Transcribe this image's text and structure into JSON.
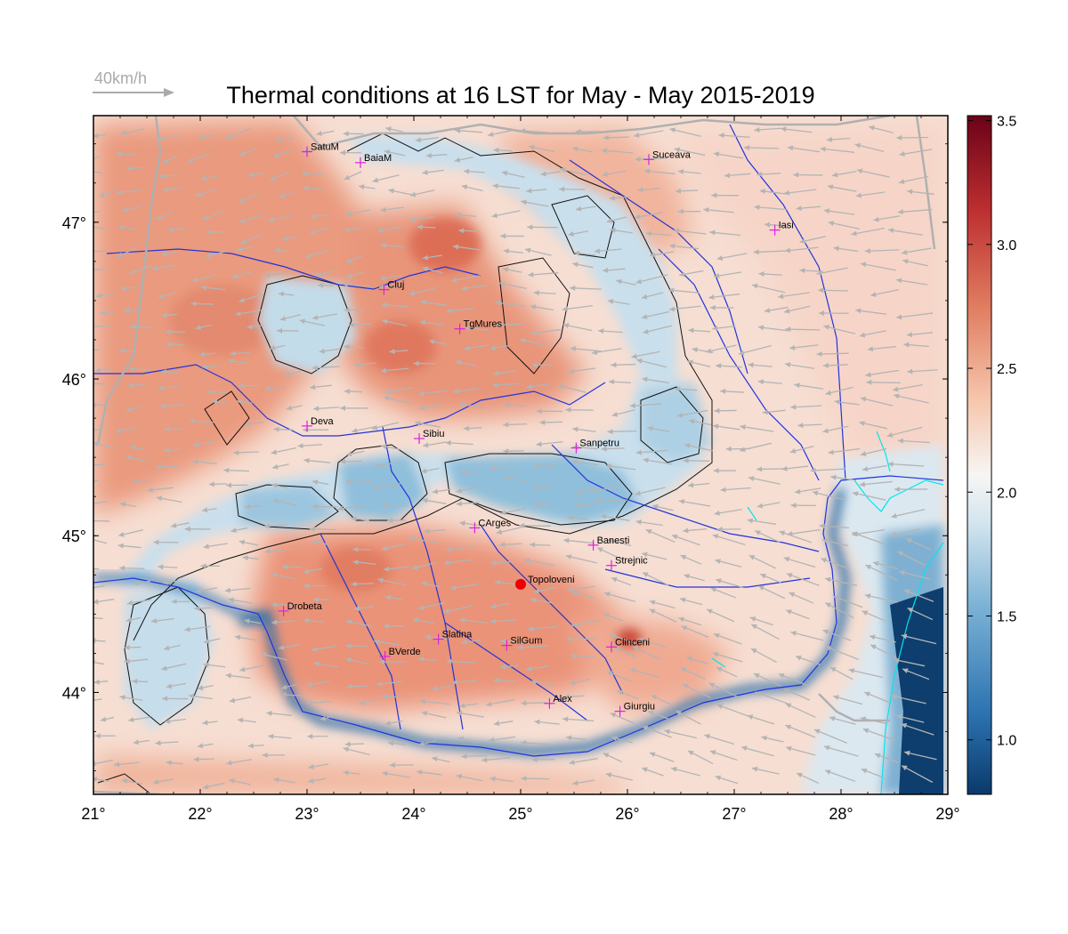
{
  "title": "Thermal conditions at 16 LST for May - May  2015-2019",
  "wind_legend": {
    "label": "40km/h",
    "color": "#aaaaaa"
  },
  "map": {
    "lon_range": [
      21,
      29
    ],
    "lat_range": [
      43.35,
      47.68
    ],
    "lon_ticks": [
      {
        "v": 21,
        "label": "21°"
      },
      {
        "v": 22,
        "label": "22°"
      },
      {
        "v": 23,
        "label": "23°"
      },
      {
        "v": 24,
        "label": "24°"
      },
      {
        "v": 25,
        "label": "25°"
      },
      {
        "v": 26,
        "label": "26°"
      },
      {
        "v": 27,
        "label": "27°"
      },
      {
        "v": 28,
        "label": "28°"
      },
      {
        "v": 29,
        "label": "29°"
      }
    ],
    "lat_ticks": [
      {
        "v": 44,
        "label": "44°"
      },
      {
        "v": 45,
        "label": "45°"
      },
      {
        "v": 46,
        "label": "46°"
      },
      {
        "v": 47,
        "label": "47°"
      }
    ],
    "colors": {
      "cold": "#0a3a6a",
      "cool": "#8ec3de",
      "neutral": "#f4f1f0",
      "warm": "#f0a582",
      "hot": "#d8604a",
      "river": "#2233dd",
      "coast": "#00e5ee",
      "border": "#b0b0b0",
      "city_marker": "#dd22dd",
      "highlight": "#ee0000"
    },
    "cities": [
      {
        "name": "SatuM",
        "lon": 23.0,
        "lat": 47.45
      },
      {
        "name": "BaiaM",
        "lon": 23.5,
        "lat": 47.38
      },
      {
        "name": "Suceava",
        "lon": 26.2,
        "lat": 47.4
      },
      {
        "name": "Iasi",
        "lon": 27.38,
        "lat": 46.95
      },
      {
        "name": "Cluj",
        "lon": 23.72,
        "lat": 46.57
      },
      {
        "name": "TgMures",
        "lon": 24.43,
        "lat": 46.32
      },
      {
        "name": "Deva",
        "lon": 23.0,
        "lat": 45.7
      },
      {
        "name": "Sibiu",
        "lon": 24.05,
        "lat": 45.62
      },
      {
        "name": "Sanpetru",
        "lon": 25.52,
        "lat": 45.56
      },
      {
        "name": "CArges",
        "lon": 24.57,
        "lat": 45.05
      },
      {
        "name": "Banesti",
        "lon": 25.68,
        "lat": 44.94
      },
      {
        "name": "Strejnic",
        "lon": 25.85,
        "lat": 44.81
      },
      {
        "name": "Drobeta",
        "lon": 22.78,
        "lat": 44.52
      },
      {
        "name": "Slatina",
        "lon": 24.23,
        "lat": 44.34
      },
      {
        "name": "SilGum",
        "lon": 24.87,
        "lat": 44.3
      },
      {
        "name": "Clinceni",
        "lon": 25.85,
        "lat": 44.29
      },
      {
        "name": "BVerde",
        "lon": 23.73,
        "lat": 44.23
      },
      {
        "name": "Alex",
        "lon": 25.27,
        "lat": 43.93
      },
      {
        "name": "Giurgiu",
        "lon": 25.93,
        "lat": 43.88
      }
    ],
    "highlight_site": {
      "name": "Topoloveni",
      "lon": 25.0,
      "lat": 44.69
    }
  },
  "colorbar": {
    "min": 0.78,
    "max": 3.52,
    "ticks": [
      {
        "v": 1.0,
        "label": "1.0"
      },
      {
        "v": 1.5,
        "label": "1.5"
      },
      {
        "v": 2.0,
        "label": "2.0"
      },
      {
        "v": 2.5,
        "label": "2.5"
      },
      {
        "v": 3.0,
        "label": "3.0"
      },
      {
        "v": 3.5,
        "label": "3.5"
      }
    ],
    "stops": [
      "#0a3a6a",
      "#2c73b1",
      "#7db3d6",
      "#d3e5ef",
      "#f7f5f4",
      "#f6c7ad",
      "#e07c60",
      "#bd2f30",
      "#6b0218"
    ]
  }
}
